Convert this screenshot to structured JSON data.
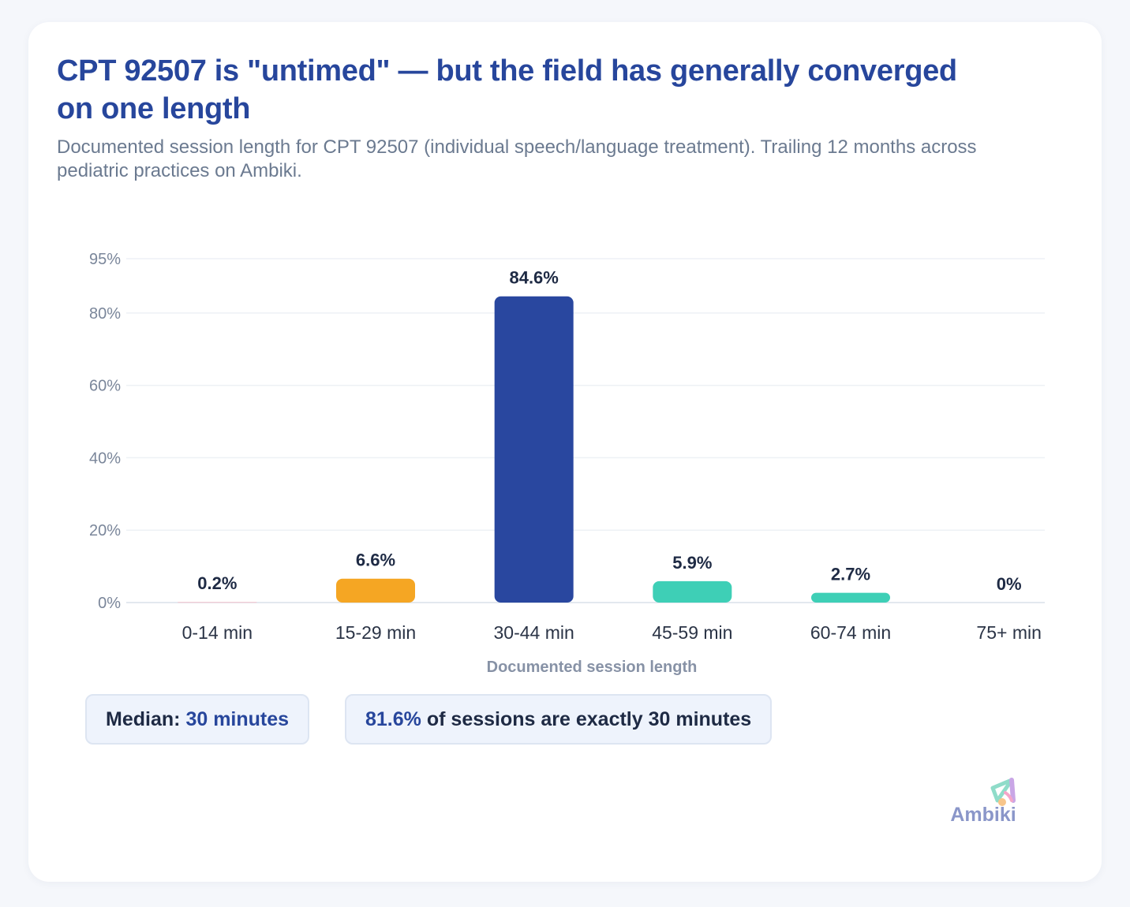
{
  "header": {
    "title": "CPT 92507 is \"untimed\" — but the field has generally converged on one length",
    "subtitle": "Documented session length for CPT 92507 (individual speech/language treatment). Trailing 12 months across pediatric practices on Ambiki."
  },
  "chart_data": {
    "type": "bar",
    "categories": [
      "0-14 min",
      "15-29 min",
      "30-44 min",
      "45-59 min",
      "60-74 min",
      "75+ min"
    ],
    "values": [
      0.2,
      6.6,
      84.6,
      5.9,
      2.7,
      0
    ],
    "value_labels": [
      "0.2%",
      "6.6%",
      "84.6%",
      "5.9%",
      "2.7%",
      "0%"
    ],
    "bar_colors": [
      "#f6c9d2",
      "#f5a623",
      "#29479f",
      "#3ecfb6",
      "#3ecfb6",
      "#3ecfb6"
    ],
    "xlabel": "Documented session length",
    "ylabel": "",
    "yticks": [
      0,
      20,
      40,
      60,
      80,
      95
    ],
    "ytick_labels": [
      "0%",
      "20%",
      "40%",
      "60%",
      "80%",
      "95%"
    ],
    "ylim": [
      0,
      95
    ],
    "grid": true
  },
  "stats": {
    "median_label": "Median:",
    "median_value": "30 minutes",
    "exact_value": "81.6%",
    "exact_text": "of sessions are exactly 30 minutes"
  },
  "brand": {
    "name": "Ambiki",
    "logo_icon": "ambiki-logo-icon"
  },
  "colors": {
    "title": "#27469c",
    "accent": "#27469c",
    "text_dark": "#1e2a44",
    "muted": "#6b7a90"
  }
}
